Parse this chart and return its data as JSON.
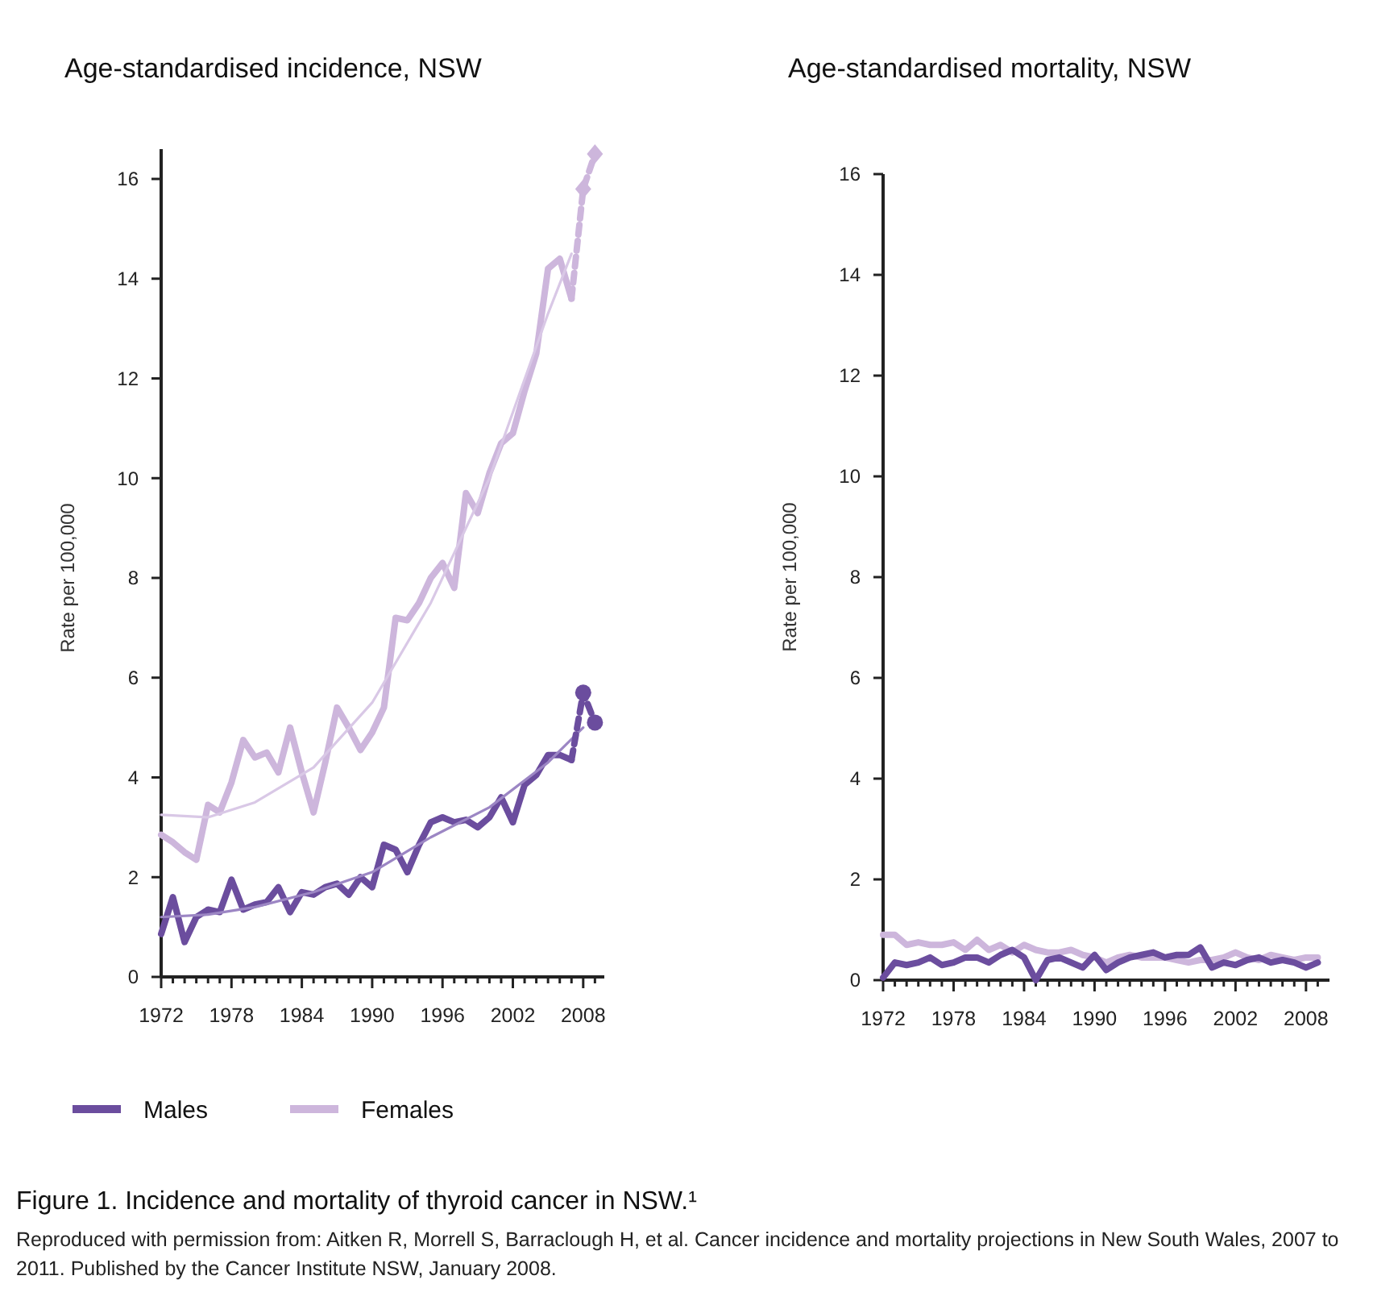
{
  "chart_data": [
    {
      "type": "line",
      "title": "Age-standardised incidence, NSW",
      "ylabel": "Rate per 100,000",
      "xlim": [
        1972,
        2009.8
      ],
      "ylim": [
        0,
        16.6
      ],
      "legend": "bottom",
      "grid": false,
      "marker": "none",
      "line_style": "solid",
      "xticks": [
        1972,
        {
          "value": 1973,
          "label": null
        },
        {
          "value": 1974,
          "label": null
        },
        {
          "value": 1975,
          "label": null
        },
        {
          "value": 1976,
          "label": null
        },
        {
          "value": 1977,
          "label": null
        },
        1978,
        {
          "value": 1979,
          "label": null
        },
        {
          "value": 1980,
          "label": null
        },
        {
          "value": 1981,
          "label": null
        },
        {
          "value": 1982,
          "label": null
        },
        {
          "value": 1983,
          "label": null
        },
        1984,
        {
          "value": 1985,
          "label": null
        },
        {
          "value": 1986,
          "label": null
        },
        {
          "value": 1987,
          "label": null
        },
        {
          "value": 1988,
          "label": null
        },
        {
          "value": 1989,
          "label": null
        },
        1990,
        {
          "value": 1991,
          "label": null
        },
        {
          "value": 1992,
          "label": null
        },
        {
          "value": 1993,
          "label": null
        },
        {
          "value": 1994,
          "label": null
        },
        {
          "value": 1995,
          "label": null
        },
        1996,
        {
          "value": 1997,
          "label": null
        },
        {
          "value": 1998,
          "label": null
        },
        {
          "value": 1999,
          "label": null
        },
        {
          "value": 2000,
          "label": null
        },
        {
          "value": 2001,
          "label": null
        },
        2002,
        {
          "value": 2003,
          "label": null
        },
        {
          "value": 2004,
          "label": null
        },
        {
          "value": 2005,
          "label": null
        },
        {
          "value": 2006,
          "label": null
        },
        {
          "value": 2007,
          "label": null
        },
        2008,
        {
          "value": 2009,
          "label": null
        }
      ],
      "yticks": [
        0,
        2,
        4,
        6,
        8,
        10,
        12,
        14,
        16
      ],
      "x": [
        1972,
        1973,
        1974,
        1975,
        1976,
        1977,
        1978,
        1979,
        1980,
        1981,
        1982,
        1983,
        1984,
        1985,
        1986,
        1987,
        1988,
        1989,
        1990,
        1991,
        1992,
        1993,
        1994,
        1995,
        1996,
        1997,
        1998,
        1999,
        2000,
        2001,
        2002,
        2003,
        2004,
        2005,
        2006,
        2007
      ],
      "series": [
        {
          "name": "Males",
          "color": "#6b4d9e",
          "values": [
            0.86,
            1.6,
            0.7,
            1.2,
            1.35,
            1.3,
            1.95,
            1.35,
            1.45,
            1.5,
            1.8,
            1.3,
            1.7,
            1.65,
            1.8,
            1.87,
            1.65,
            2.0,
            1.8,
            2.65,
            2.55,
            2.1,
            2.65,
            3.1,
            3.2,
            3.1,
            3.15,
            3.0,
            3.2,
            3.6,
            3.1,
            3.85,
            4.05,
            4.45,
            4.45,
            4.35
          ]
        },
        {
          "name": "Females",
          "color": "#cdb6dc",
          "values": [
            2.85,
            2.7,
            2.5,
            2.35,
            3.45,
            3.3,
            3.9,
            4.75,
            4.4,
            4.5,
            4.1,
            5.0,
            4.1,
            3.3,
            4.3,
            5.4,
            5.0,
            4.55,
            4.9,
            5.4,
            7.2,
            7.15,
            7.5,
            8.0,
            8.3,
            7.8,
            9.7,
            9.3,
            10.1,
            10.7,
            10.9,
            11.75,
            12.5,
            14.2,
            14.4,
            13.6
          ]
        },
        {
          "color": "#9c86c4",
          "x": [
            1972,
            1976,
            1980,
            1985,
            1990,
            1995,
            2000,
            2005,
            2008
          ],
          "values": [
            1.2,
            1.25,
            1.4,
            1.7,
            2.1,
            2.8,
            3.4,
            4.3,
            5.0
          ]
        },
        {
          "color": "#d9c8e6",
          "x": [
            1972,
            1976,
            1980,
            1985,
            1990,
            1995,
            2000,
            2005,
            2007
          ],
          "values": [
            3.25,
            3.2,
            3.5,
            4.2,
            5.5,
            7.5,
            10.0,
            13.3,
            14.5
          ]
        },
        {
          "color": "#6b4d9e",
          "x": [
            2007,
            2008,
            2009
          ],
          "values": [
            4.35,
            5.7,
            5.1
          ],
          "line_style": "dashed",
          "marker": "circle"
        },
        {
          "color": "#cdb6dc",
          "x": [
            2007,
            2008,
            2009
          ],
          "values": [
            13.6,
            15.8,
            16.5
          ],
          "line_style": "dashed",
          "marker": "diamond"
        }
      ],
      "annotations": [
        "Figure 1. Incidence and mortality of thyroid cancer in NSW.¹",
        "Reproduced with permission from: Aitken R, Morrell S, Barraclough H, et al. Cancer incidence and mortality projections in New South Wales, 2007 to 2011. Published by the Cancer Institute NSW, January 2008."
      ]
    },
    {
      "type": "line",
      "title": "Age-standardised mortality, NSW",
      "ylabel": "Rate per 100,000",
      "xlim": [
        1972,
        2010
      ],
      "ylim": [
        0,
        16
      ],
      "grid": false,
      "marker": "none",
      "line_style": "solid",
      "xticks": [
        1972,
        {
          "value": 1973,
          "label": null
        },
        {
          "value": 1974,
          "label": null
        },
        {
          "value": 1975,
          "label": null
        },
        {
          "value": 1976,
          "label": null
        },
        {
          "value": 1977,
          "label": null
        },
        1978,
        {
          "value": 1979,
          "label": null
        },
        {
          "value": 1980,
          "label": null
        },
        {
          "value": 1981,
          "label": null
        },
        {
          "value": 1982,
          "label": null
        },
        {
          "value": 1983,
          "label": null
        },
        1984,
        {
          "value": 1985,
          "label": null
        },
        {
          "value": 1986,
          "label": null
        },
        {
          "value": 1987,
          "label": null
        },
        {
          "value": 1988,
          "label": null
        },
        {
          "value": 1989,
          "label": null
        },
        1990,
        {
          "value": 1991,
          "label": null
        },
        {
          "value": 1992,
          "label": null
        },
        {
          "value": 1993,
          "label": null
        },
        {
          "value": 1994,
          "label": null
        },
        {
          "value": 1995,
          "label": null
        },
        1996,
        {
          "value": 1997,
          "label": null
        },
        {
          "value": 1998,
          "label": null
        },
        {
          "value": 1999,
          "label": null
        },
        {
          "value": 2000,
          "label": null
        },
        {
          "value": 2001,
          "label": null
        },
        2002,
        {
          "value": 2003,
          "label": null
        },
        {
          "value": 2004,
          "label": null
        },
        {
          "value": 2005,
          "label": null
        },
        {
          "value": 2006,
          "label": null
        },
        {
          "value": 2007,
          "label": null
        },
        2008,
        {
          "value": 2009,
          "label": null
        }
      ],
      "yticks": [
        0,
        2,
        4,
        6,
        8,
        10,
        12,
        14,
        16
      ],
      "x": [
        1972,
        1973,
        1974,
        1975,
        1976,
        1977,
        1978,
        1979,
        1980,
        1981,
        1982,
        1983,
        1984,
        1985,
        1986,
        1987,
        1988,
        1989,
        1990,
        1991,
        1992,
        1993,
        1994,
        1995,
        1996,
        1997,
        1998,
        1999,
        2000,
        2001,
        2002,
        2003,
        2004,
        2005,
        2006,
        2007,
        2008,
        2009
      ],
      "series": [
        {
          "color": "#cdb6dc",
          "values": [
            0.9,
            0.9,
            0.7,
            0.75,
            0.7,
            0.7,
            0.75,
            0.6,
            0.8,
            0.6,
            0.7,
            0.55,
            0.7,
            0.6,
            0.55,
            0.55,
            0.6,
            0.5,
            0.45,
            0.35,
            0.45,
            0.5,
            0.45,
            0.45,
            0.45,
            0.4,
            0.35,
            0.4,
            0.4,
            0.45,
            0.55,
            0.45,
            0.4,
            0.5,
            0.45,
            0.4,
            0.45,
            0.45
          ]
        },
        {
          "color": "#6b4d9e",
          "values": [
            0.05,
            0.35,
            0.3,
            0.35,
            0.45,
            0.3,
            0.35,
            0.45,
            0.45,
            0.35,
            0.5,
            0.6,
            0.45,
            0.0,
            0.4,
            0.45,
            0.35,
            0.25,
            0.5,
            0.2,
            0.35,
            0.45,
            0.5,
            0.55,
            0.45,
            0.5,
            0.5,
            0.65,
            0.25,
            0.35,
            0.3,
            0.4,
            0.45,
            0.35,
            0.4,
            0.35,
            0.25,
            0.35
          ]
        }
      ]
    }
  ]
}
